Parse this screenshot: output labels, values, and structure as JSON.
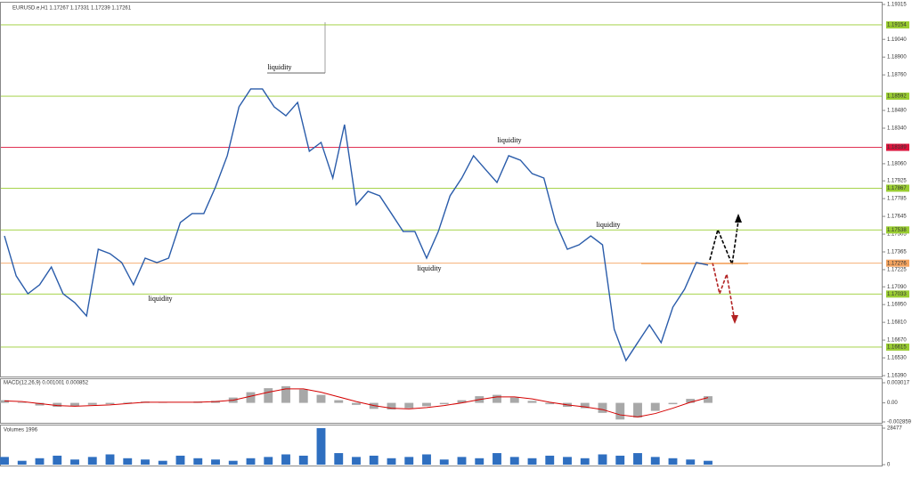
{
  "chart_data": [
    {
      "type": "line",
      "title": "EURUSD.e,H1  1.17267 1.17331 1.17239 1.17261",
      "color": "#2a5caa",
      "values": [
        1.17491,
        1.17176,
        1.17035,
        1.17106,
        1.17246,
        1.17035,
        1.16965,
        1.1686,
        1.17386,
        1.17351,
        1.17281,
        1.17106,
        1.17316,
        1.17281,
        1.17316,
        1.17597,
        1.17667,
        1.17667,
        1.17877,
        1.18123,
        1.18508,
        1.18649,
        1.18649,
        1.18508,
        1.18438,
        1.18543,
        1.18158,
        1.18228,
        1.17947,
        1.18368,
        1.17737,
        1.17842,
        1.17807,
        1.17667,
        1.17526,
        1.17526,
        1.17316,
        1.17526,
        1.17807,
        1.17947,
        1.18123,
        1.18017,
        1.17912,
        1.18123,
        1.18088,
        1.17982,
        1.17947,
        1.17597,
        1.17386,
        1.17421,
        1.17491,
        1.17421,
        1.16755,
        1.16509,
        1.1665,
        1.1679,
        1.1665,
        1.1693,
        1.17071,
        1.17281,
        1.17261
      ],
      "ylim": [
        1.1639,
        1.19315
      ],
      "yticks": [
        1.19315,
        {
          "value": 1.1904,
          "label": "1.19040"
        },
        {
          "value": 1.189,
          "label": "1.18900"
        },
        {
          "value": 1.1876,
          "label": "1.18760"
        },
        {
          "value": 1.1848,
          "label": "1.18480"
        },
        {
          "value": 1.1834,
          "label": "1.18340"
        },
        {
          "value": 1.1806,
          "label": "1.18060"
        },
        1.17925,
        1.17785,
        1.17645,
        1.17505,
        1.17365,
        1.17225,
        {
          "value": 1.1709,
          "label": "1.17090"
        },
        {
          "value": 1.1695,
          "label": "1.16950"
        },
        {
          "value": 1.1681,
          "label": "1.16810"
        },
        {
          "value": 1.1667,
          "label": "1.16670"
        },
        {
          "value": 1.1653,
          "label": "1.16530"
        },
        {
          "value": 1.1639,
          "label": "1.16390"
        }
      ],
      "levels": [
        {
          "value": 1.19154,
          "label": "1.19154",
          "color": "#9acd32"
        },
        {
          "value": 1.18592,
          "label": "1.18592",
          "color": "#9acd32"
        },
        {
          "value": 1.18189,
          "label": "1.18189",
          "color": "#dc143c"
        },
        {
          "value": 1.17867,
          "label": "1.17867",
          "color": "#9acd32"
        },
        {
          "value": 1.17538,
          "label": "1.17538",
          "color": "#9acd32"
        },
        {
          "value": 1.17276,
          "label": "1.17276",
          "color": "#f4a460"
        },
        {
          "value": 1.17033,
          "label": "1.17033",
          "color": "#9acd32"
        },
        {
          "value": 1.16615,
          "label": "1.16615",
          "color": "#9acd32"
        }
      ],
      "annotations": [
        "liquidity",
        "liquidity",
        "liquidity",
        "liquidity",
        "liquidity"
      ]
    },
    {
      "type": "bar",
      "title": "MACD(12,26,9) 0.001001 0.000852",
      "color": "#a8a8a8",
      "values": [
        0.0004,
        0.0001,
        -0.0004,
        -0.0006,
        -0.0005,
        -0.0003,
        -0.0002,
        0.0001,
        0.0002,
        0.0001,
        0.0,
        0.0002,
        0.0003,
        0.0008,
        0.0016,
        0.0022,
        0.0025,
        0.002,
        0.0012,
        0.0004,
        -0.0003,
        -0.0009,
        -0.001,
        -0.0008,
        -0.0005,
        -0.0002,
        0.0004,
        0.001,
        0.0012,
        0.0008,
        0.0003,
        -0.0002,
        -0.0006,
        -0.0008,
        -0.0015,
        -0.0025,
        -0.0022,
        -0.0012,
        -0.0002,
        0.0006,
        0.001
      ],
      "line": {
        "color": "#d40000",
        "values": [
          0.0003,
          0.0002,
          -0.0001,
          -0.0004,
          -0.0005,
          -0.0004,
          -0.0003,
          -0.0001,
          0.0001,
          0.0001,
          0.0001,
          0.0001,
          0.0002,
          0.0004,
          0.001,
          0.0016,
          0.0021,
          0.0021,
          0.0016,
          0.0009,
          0.0002,
          -0.0004,
          -0.0008,
          -0.0009,
          -0.0007,
          -0.0004,
          0.0,
          0.0005,
          0.0009,
          0.0009,
          0.0006,
          0.0001,
          -0.0003,
          -0.0006,
          -0.001,
          -0.0018,
          -0.0021,
          -0.0016,
          -0.0008,
          0.0001,
          0.0008
        ]
      },
      "ylim": [
        -0.002859,
        0.003017
      ],
      "yticks": [
        0.003017,
        {
          "value": 0,
          "label": "0.00"
        },
        -0.002859
      ]
    },
    {
      "type": "bar",
      "title": "Volumes 1996",
      "color": "#2f6fc0",
      "values": [
        6000,
        3000,
        5000,
        7000,
        4000,
        6000,
        8000,
        5000,
        4000,
        3000,
        7000,
        5000,
        4000,
        3000,
        5000,
        6000,
        8000,
        7000,
        28477,
        9000,
        6000,
        7000,
        5000,
        6000,
        8000,
        4000,
        6000,
        5000,
        9000,
        6000,
        5000,
        7000,
        6000,
        5000,
        8000,
        7000,
        9000,
        6000,
        5000,
        4000,
        3000
      ],
      "ylim": [
        0,
        28477
      ],
      "yticks": [
        28477,
        0
      ]
    }
  ]
}
